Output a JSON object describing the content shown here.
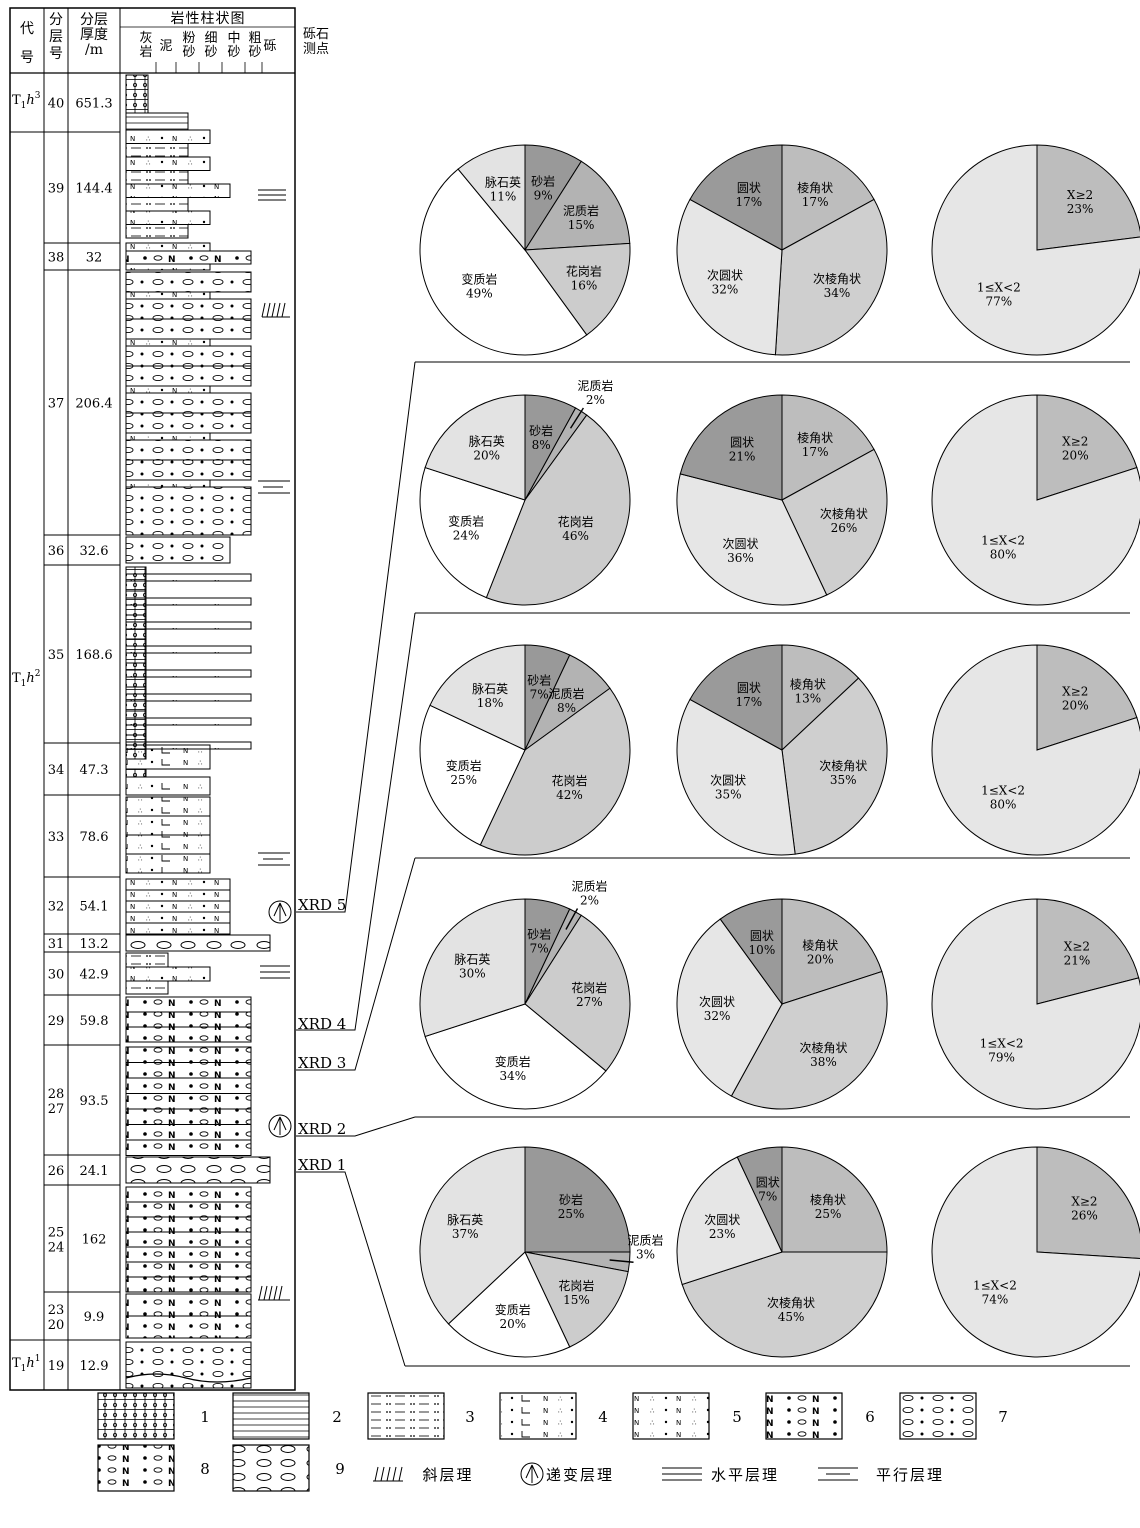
{
  "header": {
    "col_code": [
      "代",
      "号"
    ],
    "col_layer": [
      "分",
      "层",
      "号"
    ],
    "col_thick": [
      "分层",
      "厚度",
      "/m"
    ],
    "col_lith": "岩性柱状图",
    "col_grav": [
      "砾石",
      "测点"
    ],
    "lith_ticks": [
      [
        "灰",
        "岩"
      ],
      [
        "泥"
      ],
      [
        "粉",
        "砂"
      ],
      [
        "细",
        "砂"
      ],
      [
        "中",
        "砂"
      ],
      [
        "粗",
        "砂"
      ],
      [
        "砾"
      ]
    ]
  },
  "codes": [
    {
      "main": "T",
      "sub": "1",
      "h": "h",
      "sup": "3"
    },
    {
      "main": "T",
      "sub": "1",
      "h": "h",
      "sup": "2"
    },
    {
      "main": "T",
      "sub": "1",
      "h": "h",
      "sup": "1"
    }
  ],
  "layers": [
    {
      "no": [
        "40"
      ],
      "thick": "651.3"
    },
    {
      "no": [
        "39"
      ],
      "thick": "144.4"
    },
    {
      "no": [
        "38"
      ],
      "thick": "32"
    },
    {
      "no": [
        "37"
      ],
      "thick": "206.4"
    },
    {
      "no": [
        "36"
      ],
      "thick": "32.6"
    },
    {
      "no": [
        "35"
      ],
      "thick": "168.6"
    },
    {
      "no": [
        "34"
      ],
      "thick": "47.3"
    },
    {
      "no": [
        "33"
      ],
      "thick": "78.6"
    },
    {
      "no": [
        "32"
      ],
      "thick": "54.1"
    },
    {
      "no": [
        "31"
      ],
      "thick": "13.2"
    },
    {
      "no": [
        "30"
      ],
      "thick": "42.9"
    },
    {
      "no": [
        "29"
      ],
      "thick": "59.8"
    },
    {
      "no": [
        "28",
        "27"
      ],
      "thick": "93.5"
    },
    {
      "no": [
        "26"
      ],
      "thick": "24.1"
    },
    {
      "no": [
        "25",
        "24"
      ],
      "thick": "162"
    },
    {
      "no": [
        "23",
        "20"
      ],
      "thick": "9.9"
    },
    {
      "no": [
        "19"
      ],
      "thick": "12.9"
    }
  ],
  "xrd": [
    "XRD 5",
    "XRD 4",
    "XRD 3",
    "XRD 2",
    "XRD 1"
  ],
  "pie_rows": [
    {
      "composition": [
        {
          "label": "砂岩",
          "pct": "9%",
          "value": 9
        },
        {
          "label": "泥质岩",
          "pct": "15%",
          "value": 15
        },
        {
          "label": "花岗岩",
          "pct": "16%",
          "value": 16
        },
        {
          "label": "变质岩",
          "pct": "49%",
          "value": 49
        },
        {
          "label": "脉石英",
          "pct": "11%",
          "value": 11
        }
      ],
      "roundness": [
        {
          "label": "棱角状",
          "pct": "17%",
          "value": 17
        },
        {
          "label": "次棱角状",
          "pct": "34%",
          "value": 34
        },
        {
          "label": "次圆状",
          "pct": "32%",
          "value": 32
        },
        {
          "label": "圆状",
          "pct": "17%",
          "value": 17
        }
      ],
      "ratio": [
        {
          "label": "X≥2",
          "pct": "23%",
          "value": 23
        },
        {
          "label": "1≤X<2",
          "pct": "77%",
          "value": 77
        }
      ]
    },
    {
      "composition": [
        {
          "label": "砂岩",
          "pct": "8%",
          "value": 8
        },
        {
          "label": "泥质岩",
          "pct": "2%",
          "value": 2
        },
        {
          "label": "花岗岩",
          "pct": "46%",
          "value": 46
        },
        {
          "label": "变质岩",
          "pct": "24%",
          "value": 24
        },
        {
          "label": "脉石英",
          "pct": "20%",
          "value": 20
        }
      ],
      "roundness": [
        {
          "label": "棱角状",
          "pct": "17%",
          "value": 17
        },
        {
          "label": "次棱角状",
          "pct": "26%",
          "value": 26
        },
        {
          "label": "次圆状",
          "pct": "36%",
          "value": 36
        },
        {
          "label": "圆状",
          "pct": "21%",
          "value": 21
        }
      ],
      "ratio": [
        {
          "label": "X≥2",
          "pct": "20%",
          "value": 20
        },
        {
          "label": "1≤X<2",
          "pct": "80%",
          "value": 80
        }
      ]
    },
    {
      "composition": [
        {
          "label": "砂岩",
          "pct": "7%",
          "value": 7
        },
        {
          "label": "泥质岩",
          "pct": "8%",
          "value": 8
        },
        {
          "label": "花岗岩",
          "pct": "42%",
          "value": 42
        },
        {
          "label": "变质岩",
          "pct": "25%",
          "value": 25
        },
        {
          "label": "脉石英",
          "pct": "18%",
          "value": 18
        }
      ],
      "roundness": [
        {
          "label": "棱角状",
          "pct": "13%",
          "value": 13
        },
        {
          "label": "次棱角状",
          "pct": "35%",
          "value": 35
        },
        {
          "label": "次圆状",
          "pct": "35%",
          "value": 35
        },
        {
          "label": "圆状",
          "pct": "17%",
          "value": 17
        }
      ],
      "ratio": [
        {
          "label": "X≥2",
          "pct": "20%",
          "value": 20
        },
        {
          "label": "1≤X<2",
          "pct": "80%",
          "value": 80
        }
      ]
    },
    {
      "composition": [
        {
          "label": "砂岩",
          "pct": "7%",
          "value": 7
        },
        {
          "label": "泥质岩",
          "pct": "2%",
          "value": 2
        },
        {
          "label": "花岗岩",
          "pct": "27%",
          "value": 27
        },
        {
          "label": "变质岩",
          "pct": "34%",
          "value": 34
        },
        {
          "label": "脉石英",
          "pct": "30%",
          "value": 30
        }
      ],
      "roundness": [
        {
          "label": "棱角状",
          "pct": "20%",
          "value": 20
        },
        {
          "label": "次棱角状",
          "pct": "38%",
          "value": 38
        },
        {
          "label": "次圆状",
          "pct": "32%",
          "value": 32
        },
        {
          "label": "圆状",
          "pct": "10%",
          "value": 10
        }
      ],
      "ratio": [
        {
          "label": "X≥2",
          "pct": "21%",
          "value": 21
        },
        {
          "label": "1≤X<2",
          "pct": "79%",
          "value": 79
        }
      ]
    },
    {
      "composition": [
        {
          "label": "砂岩",
          "pct": "25%",
          "value": 25
        },
        {
          "label": "泥质岩",
          "pct": "3%",
          "value": 3
        },
        {
          "label": "花岗岩",
          "pct": "15%",
          "value": 15
        },
        {
          "label": "变质岩",
          "pct": "20%",
          "value": 20
        },
        {
          "label": "脉石英",
          "pct": "37%",
          "value": 37
        }
      ],
      "roundness": [
        {
          "label": "棱角状",
          "pct": "25%",
          "value": 25
        },
        {
          "label": "次棱角状",
          "pct": "45%",
          "value": 45
        },
        {
          "label": "次圆状",
          "pct": "23%",
          "value": 23
        },
        {
          "label": "圆状",
          "pct": "7%",
          "value": 7
        }
      ],
      "ratio": [
        {
          "label": "X≥2",
          "pct": "26%",
          "value": 26
        },
        {
          "label": "1≤X<2",
          "pct": "74%",
          "value": 74
        }
      ]
    }
  ],
  "colors": {
    "composition": [
      "#999999",
      "#b3b3b3",
      "#cccccc",
      "#ffffff",
      "#e3e3e3"
    ],
    "roundness": [
      "#bdbdbd",
      "#cfcfcf",
      "#e6e6e6",
      "#9a9a9a"
    ],
    "ratio": [
      "#bdbdbd",
      "#e6e6e6"
    ]
  },
  "legend": {
    "numbers": [
      "1",
      "2",
      "3",
      "4",
      "5",
      "6",
      "7",
      "8",
      "9"
    ],
    "symbols": [
      "斜层理",
      "递变层理",
      "水平层理",
      "平行层理"
    ]
  }
}
